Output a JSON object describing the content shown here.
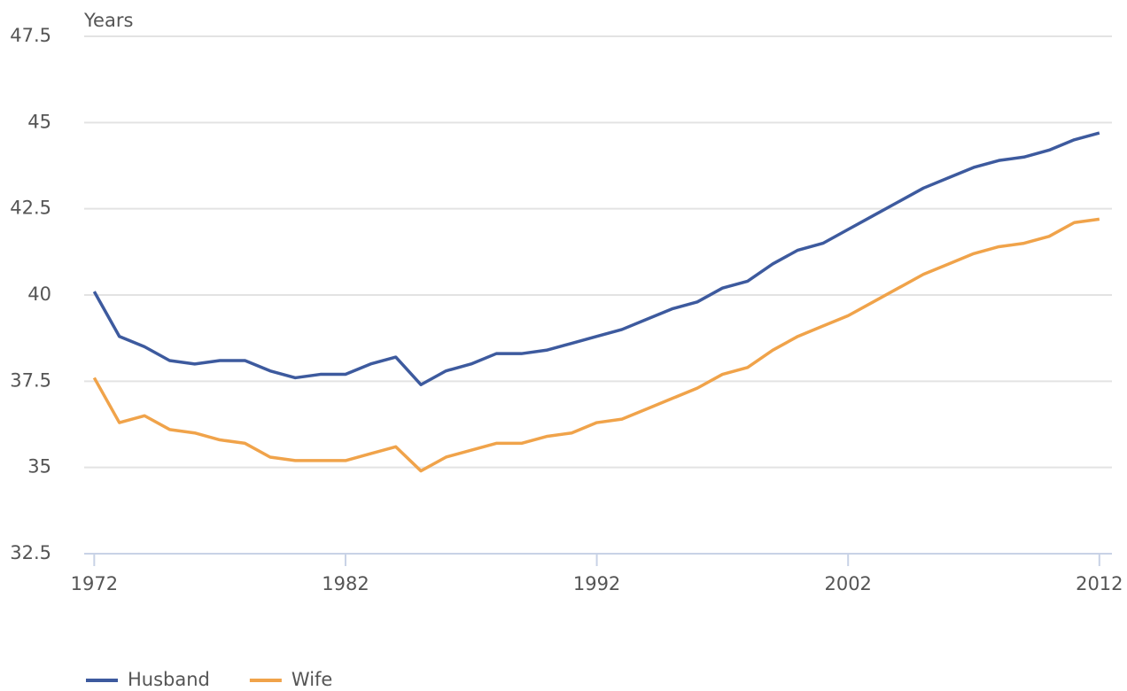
{
  "chart_data": {
    "type": "line",
    "y_label": "Years",
    "x": [
      1972,
      1973,
      1974,
      1975,
      1976,
      1977,
      1978,
      1979,
      1980,
      1981,
      1982,
      1983,
      1984,
      1985,
      1986,
      1987,
      1988,
      1989,
      1990,
      1991,
      1992,
      1993,
      1994,
      1995,
      1996,
      1997,
      1998,
      1999,
      2000,
      2001,
      2002,
      2003,
      2004,
      2005,
      2006,
      2007,
      2008,
      2009,
      2010,
      2011,
      2012
    ],
    "series": [
      {
        "name": "Husband",
        "color": "#3d5a9e",
        "values": [
          40.1,
          38.8,
          38.5,
          38.1,
          38.0,
          38.1,
          38.1,
          37.8,
          37.6,
          37.7,
          37.7,
          38.0,
          38.2,
          37.4,
          37.8,
          38.0,
          38.3,
          38.3,
          38.4,
          38.6,
          38.8,
          39.0,
          39.3,
          39.6,
          39.8,
          40.2,
          40.4,
          40.9,
          41.3,
          41.5,
          41.9,
          42.3,
          42.7,
          43.1,
          43.4,
          43.7,
          43.9,
          44.0,
          44.2,
          44.5,
          44.7
        ]
      },
      {
        "name": "Wife",
        "color": "#f0a34a",
        "values": [
          37.6,
          36.3,
          36.5,
          36.1,
          36.0,
          35.8,
          35.7,
          35.3,
          35.2,
          35.2,
          35.2,
          35.4,
          35.6,
          34.9,
          35.3,
          35.5,
          35.7,
          35.7,
          35.9,
          36.0,
          36.3,
          36.4,
          36.7,
          37.0,
          37.3,
          37.7,
          37.9,
          38.4,
          38.8,
          39.1,
          39.4,
          39.8,
          40.2,
          40.6,
          40.9,
          41.2,
          41.4,
          41.5,
          41.7,
          42.1,
          42.2
        ]
      }
    ],
    "xlim": [
      1971.6,
      2012.5
    ],
    "xticks": [
      1972,
      1982,
      1992,
      2002,
      2012
    ],
    "ylim": [
      32.5,
      47.5
    ],
    "yticks": [
      32.5,
      35,
      37.5,
      40,
      42.5,
      45,
      47.5
    ],
    "grid": true,
    "legend": "bottom-left"
  }
}
